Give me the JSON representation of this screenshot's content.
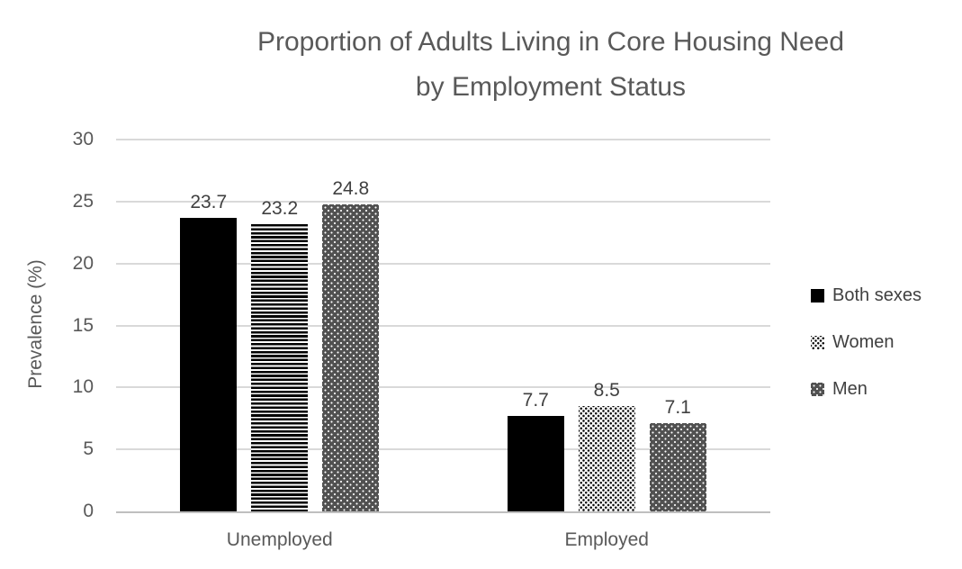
{
  "chart_data": {
    "type": "bar",
    "title_line1": "Proportion of Adults Living in Core Housing Need",
    "title_line2": "by Employment Status",
    "categories": [
      "Unemployed",
      "Employed"
    ],
    "series": [
      {
        "name": "Both sexes",
        "values": [
          23.7,
          7.7
        ],
        "legend_pattern": "solid",
        "bar_patterns": [
          "solid",
          "solid"
        ]
      },
      {
        "name": "Women",
        "values": [
          23.2,
          8.5
        ],
        "legend_pattern": "stipple",
        "bar_patterns": [
          "hstripes",
          "stipple"
        ]
      },
      {
        "name": "Men",
        "values": [
          24.8,
          7.1
        ],
        "legend_pattern": "graydots",
        "bar_patterns": [
          "graydots",
          "graydots"
        ]
      }
    ],
    "xlabel": "",
    "ylabel": "Prevalence (%)",
    "ylim": [
      0,
      30
    ],
    "yticks": [
      0,
      5,
      10,
      15,
      20,
      25,
      30
    ],
    "grid": true,
    "legend_position": "right",
    "data_labels": true,
    "colors": {
      "bar_black": "#000000",
      "men_gray": "#515151",
      "grid": "#d9d9d9",
      "axis": "#bfbfbf",
      "title_text": "#595959",
      "axis_text": "#595959",
      "label_text": "#404040"
    }
  }
}
